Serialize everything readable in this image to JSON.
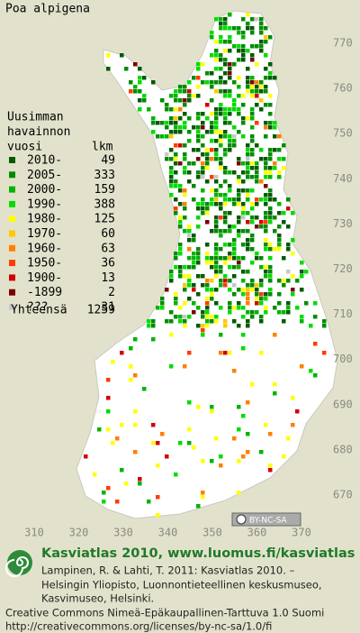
{
  "title": "Poa alpigena",
  "legend": {
    "heading": [
      "Uusimman",
      "havainnon",
      "vuosi"
    ],
    "count_heading": "lkm",
    "rows": [
      {
        "label": "2010-",
        "count": 49,
        "color": "#005a00"
      },
      {
        "label": "2005-",
        "count": 333,
        "color": "#008c00"
      },
      {
        "label": "2000-",
        "count": 159,
        "color": "#00b400"
      },
      {
        "label": "1990-",
        "count": 388,
        "color": "#00dc00"
      },
      {
        "label": "1980-",
        "count": 125,
        "color": "#ffff00"
      },
      {
        "label": "1970-",
        "count": 60,
        "color": "#ffc800"
      },
      {
        "label": "1960-",
        "count": 63,
        "color": "#ff8000"
      },
      {
        "label": "1950-",
        "count": 36,
        "color": "#ff3c00"
      },
      {
        "label": "1900-",
        "count": 13,
        "color": "#d20000"
      },
      {
        "label": "-1899",
        "count": 2,
        "color": "#780000"
      },
      {
        "label": "???",
        "count": 31,
        "color": "#c8c8c8"
      }
    ],
    "total_label": "Yhteensä",
    "total": 1259
  },
  "axis": {
    "y_labels": [
      770,
      760,
      750,
      740,
      730,
      720,
      710,
      700,
      690,
      680,
      670
    ],
    "x_labels": [
      310,
      320,
      330,
      340,
      350,
      360,
      370
    ]
  },
  "license_badge": "BY-NC-SA",
  "footer": {
    "heading": "Kasviatlas 2010, www.luomus.fi/kasviatlas",
    "citation": [
      "Lampinen, R. & Lahti, T. 2011: Kasviatlas 2010. –",
      "Helsingin Yliopisto, Luonnontieteellinen keskusmuseo,",
      "Kasvimuseo, Helsinki."
    ],
    "license": [
      "Creative Commons Nimeä-Epäkaupallinen-Tarttuva 1.0 Suomi",
      "http://creativecommons.org/licenses/by-nc-sa/1.0/fi"
    ]
  }
}
